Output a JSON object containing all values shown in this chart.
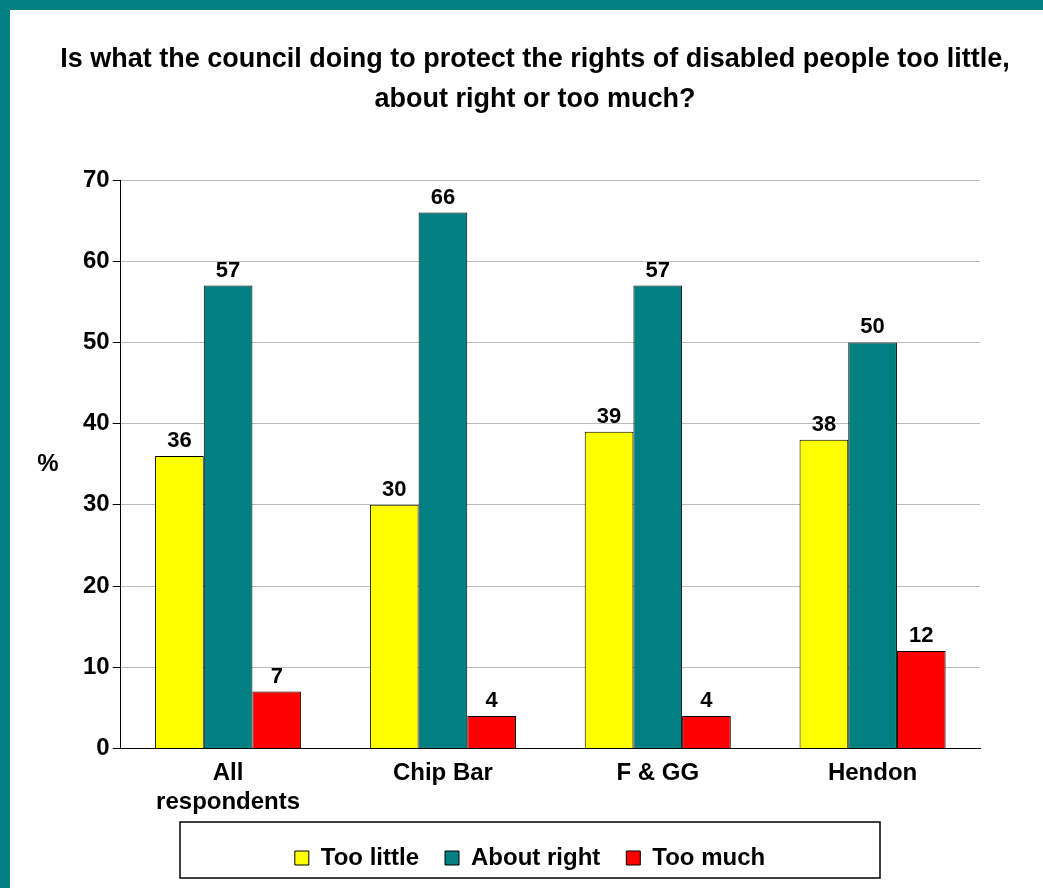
{
  "chart_data": {
    "type": "bar",
    "title": "Is what the council doing to protect the rights of disabled people too little, about right or too much?",
    "ylabel": "%",
    "categories": [
      "All respondents",
      "Chip Bar",
      "F & GG",
      "Hendon"
    ],
    "series": [
      {
        "name": "Too little",
        "color": "#ffff00",
        "values": [
          36,
          30,
          39,
          38
        ]
      },
      {
        "name": "About right",
        "color": "#008080",
        "values": [
          57,
          66,
          57,
          50
        ]
      },
      {
        "name": "Too much",
        "color": "#ff0000",
        "values": [
          7,
          4,
          4,
          12
        ]
      }
    ],
    "ylim": [
      0,
      70
    ],
    "yticks": [
      0,
      10,
      20,
      30,
      40,
      50,
      60,
      70
    ],
    "grid": "y",
    "legend": "bottom",
    "data_labels": true
  }
}
